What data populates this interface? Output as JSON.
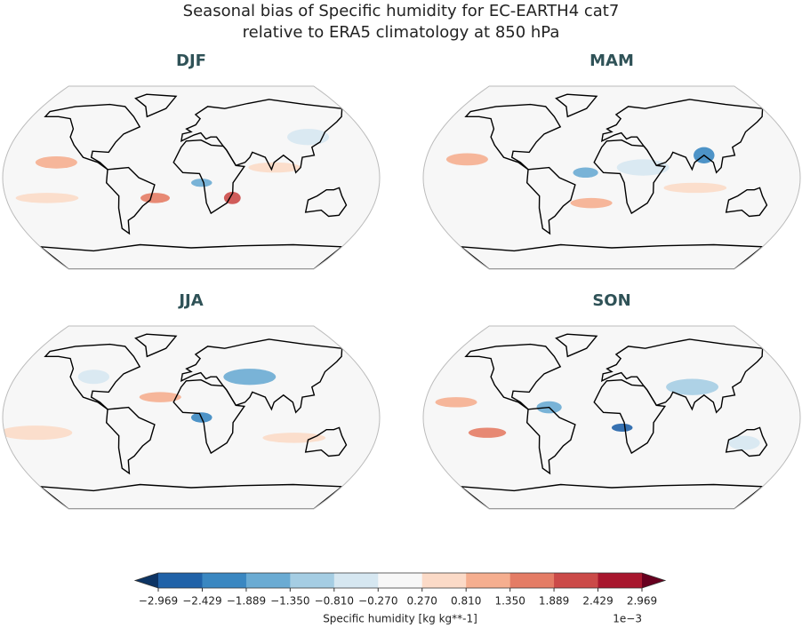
{
  "title_lines": [
    "Seasonal bias of Specific humidity for EC-EARTH4 cat7",
    "relative to ERA5 climatology at 850 hPa"
  ],
  "panels": [
    {
      "title": "DJF"
    },
    {
      "title": "MAM"
    },
    {
      "title": "JJA"
    },
    {
      "title": "SON"
    }
  ],
  "colorbar": {
    "ticks": [
      {
        "value": -2.969,
        "label": "−2.969"
      },
      {
        "value": -2.429,
        "label": "−2.429"
      },
      {
        "value": -1.889,
        "label": "−1.889"
      },
      {
        "value": -1.35,
        "label": "−1.350"
      },
      {
        "value": -0.81,
        "label": "−0.810"
      },
      {
        "value": -0.27,
        "label": "−0.270"
      },
      {
        "value": 0.27,
        "label": "0.270"
      },
      {
        "value": 0.81,
        "label": "0.810"
      },
      {
        "value": 1.35,
        "label": "1.350"
      },
      1.889,
      2.429,
      2.969
    ],
    "colors": [
      "#2062a8",
      "#3a87c1",
      "#6aabd3",
      "#a5cde3",
      "#d6e7f1",
      "#f7f7f7",
      "#fbdac7",
      "#f5ae8f",
      "#e47c65",
      "#cb4a48",
      "#a8172e"
    ],
    "under_color": "#0d3464",
    "over_color": "#67001f",
    "label": "Specific humidity [kg kg**-1]",
    "offset_text": "1e−3"
  }
}
